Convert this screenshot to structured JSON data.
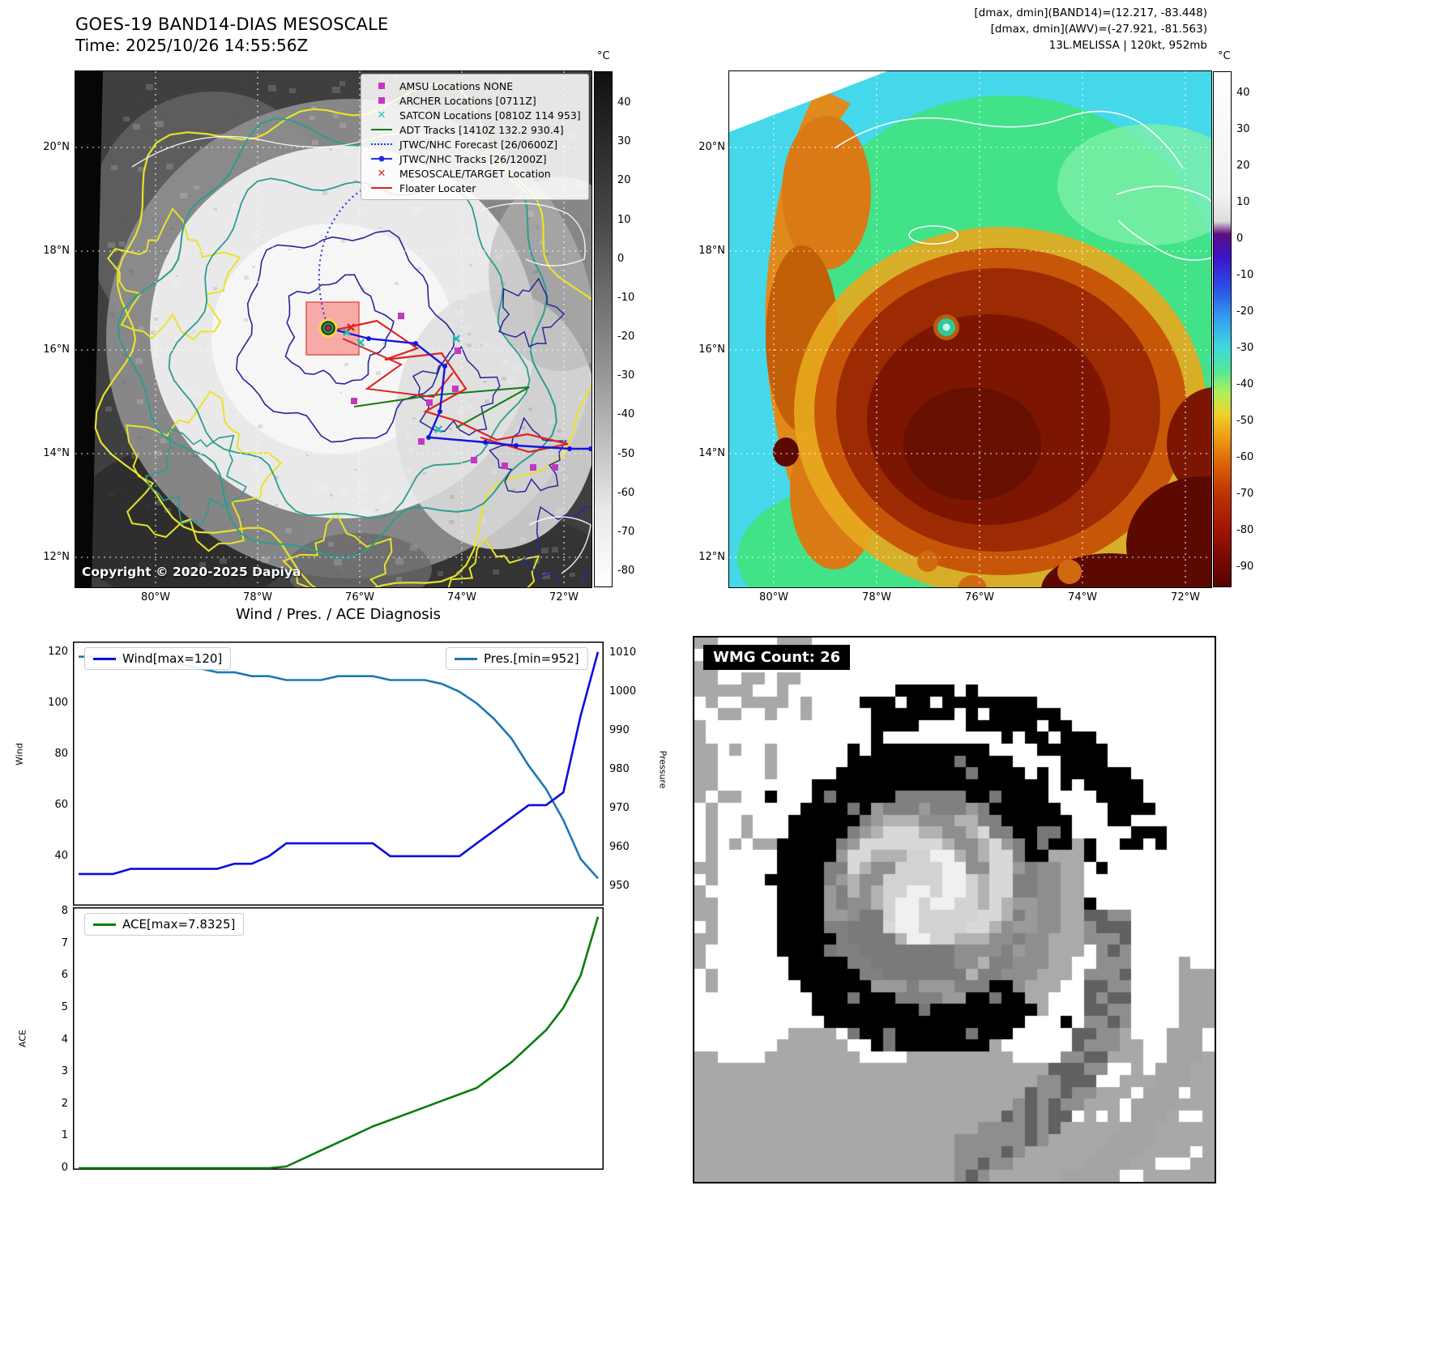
{
  "colors": {
    "wind_line": "#0d0de0",
    "pressure_line": "#1f77b4",
    "ace_line": "#0a7d0a",
    "magenta_marker": "#c238c2",
    "cyan_marker": "#1fbfae",
    "red_marker": "#e02222",
    "green_track": "#157a15",
    "blue_track": "#2a2ae0",
    "target_box": "#f06056"
  },
  "band14_panel": {
    "title": "GOES-19 BAND14-DIAS MESOSCALE",
    "subtitle": "Time: 2025/10/26 14:55:56Z",
    "copyright": "Copyright © 2020-2025 Dapiya",
    "colorbar_unit": "°C",
    "colorbar_ticks": [
      40,
      30,
      20,
      10,
      0,
      -10,
      -20,
      -30,
      -40,
      -50,
      -60,
      -70,
      -80
    ],
    "lat_ticks": [
      "20°N",
      "18°N",
      "16°N",
      "14°N",
      "12°N"
    ],
    "lon_ticks": [
      "80°W",
      "78°W",
      "76°W",
      "74°W",
      "72°W"
    ],
    "legend_items": [
      {
        "label": "AMSU Locations NONE",
        "marker": "magenta-square"
      },
      {
        "label": "ARCHER Locations [0711Z]",
        "marker": "magenta-square"
      },
      {
        "label": "SATCON Locations [0810Z 114 953]",
        "marker": "cyan-x"
      },
      {
        "label": "ADT Tracks [1410Z 132.2 930.4]",
        "marker": "green-line"
      },
      {
        "label": "JTWC/NHC Forecast [26/0600Z]",
        "marker": "blue-dotted"
      },
      {
        "label": "JTWC/NHC Tracks [26/1200Z]",
        "marker": "blue-line-dot"
      },
      {
        "label": "MESOSCALE/TARGET Location",
        "marker": "red-x"
      },
      {
        "label": "Floater Locater",
        "marker": "red-line"
      }
    ]
  },
  "awv_panel": {
    "header_lines": [
      "[dmax, dmin](BAND14)=(12.217, -83.448)",
      "[dmax, dmin](AWV)=(-27.921, -81.563)",
      "13L.MELISSA | 120kt, 952mb"
    ],
    "colorbar_unit": "°C",
    "colorbar_ticks": [
      40,
      30,
      20,
      10,
      0,
      -10,
      -20,
      -30,
      -40,
      -50,
      -60,
      -70,
      -80,
      -90
    ],
    "lat_ticks": [
      "20°N",
      "18°N",
      "16°N",
      "14°N",
      "12°N"
    ],
    "lon_ticks": [
      "80°W",
      "78°W",
      "76°W",
      "74°W",
      "72°W"
    ]
  },
  "diagnosis": {
    "title": "Wind / Pres. / ACE Diagnosis",
    "wind_legend": "Wind[max=120]",
    "pres_legend": "Pres.[min=952]",
    "ace_legend": "ACE[max=7.8325]"
  },
  "wmg_panel": {
    "label": "WMG Count: 26"
  },
  "chart_data": [
    {
      "type": "line",
      "title": "Wind / Pres. / ACE Diagnosis",
      "x": [
        0,
        1,
        2,
        3,
        4,
        5,
        6,
        7,
        8,
        9,
        10,
        11,
        12,
        13,
        14,
        15,
        16,
        17,
        18,
        19,
        20,
        21,
        22,
        23,
        24,
        25,
        26,
        27,
        28,
        29,
        30
      ],
      "series": [
        {
          "name": "Wind[max=120]",
          "axis": "left",
          "color": "#0d0de0",
          "values": [
            33,
            33,
            33,
            35,
            35,
            35,
            35,
            35,
            35,
            37,
            37,
            40,
            45,
            45,
            45,
            45,
            45,
            45,
            40,
            40,
            40,
            40,
            40,
            45,
            50,
            55,
            60,
            60,
            65,
            95,
            120
          ]
        },
        {
          "name": "Pres.[min=952]",
          "axis": "right",
          "color": "#1f77b4",
          "values": [
            1009,
            1009,
            1009,
            1008,
            1008,
            1008,
            1007,
            1006,
            1005,
            1005,
            1004,
            1004,
            1003,
            1003,
            1003,
            1004,
            1004,
            1004,
            1003,
            1003,
            1003,
            1002,
            1000,
            997,
            993,
            988,
            981,
            975,
            967,
            957,
            952
          ]
        }
      ],
      "left_ylabel": "Wind",
      "right_ylabel": "Pressure",
      "left_ylim": [
        20.6,
        124.1
      ],
      "right_ylim": [
        945,
        1012.9
      ],
      "left_ticks": [
        120,
        100,
        80,
        60,
        40
      ],
      "right_ticks": [
        1010,
        1000,
        990,
        980,
        970,
        960,
        950
      ],
      "legend_position": "upper-left / upper-right",
      "grid": false
    },
    {
      "type": "line",
      "x": [
        0,
        1,
        2,
        3,
        4,
        5,
        6,
        7,
        8,
        9,
        10,
        11,
        12,
        13,
        14,
        15,
        16,
        17,
        18,
        19,
        20,
        21,
        22,
        23,
        24,
        25,
        26,
        27,
        28,
        29,
        30
      ],
      "series": [
        {
          "name": "ACE[max=7.8325]",
          "color": "#0a7d0a",
          "values": [
            0,
            0,
            0,
            0,
            0,
            0,
            0,
            0,
            0,
            0,
            0,
            0,
            0.05,
            0.3,
            0.55,
            0.8,
            1.05,
            1.3,
            1.5,
            1.7,
            1.9,
            2.1,
            2.3,
            2.5,
            2.9,
            3.3,
            3.8,
            4.3,
            5.0,
            6.0,
            7.8325
          ]
        }
      ],
      "ylabel": "ACE",
      "ylim": [
        -0.05,
        8.13
      ],
      "ticks": [
        8,
        7,
        6,
        5,
        4,
        3,
        2,
        1,
        0
      ],
      "legend_position": "upper-left",
      "grid": false
    }
  ]
}
